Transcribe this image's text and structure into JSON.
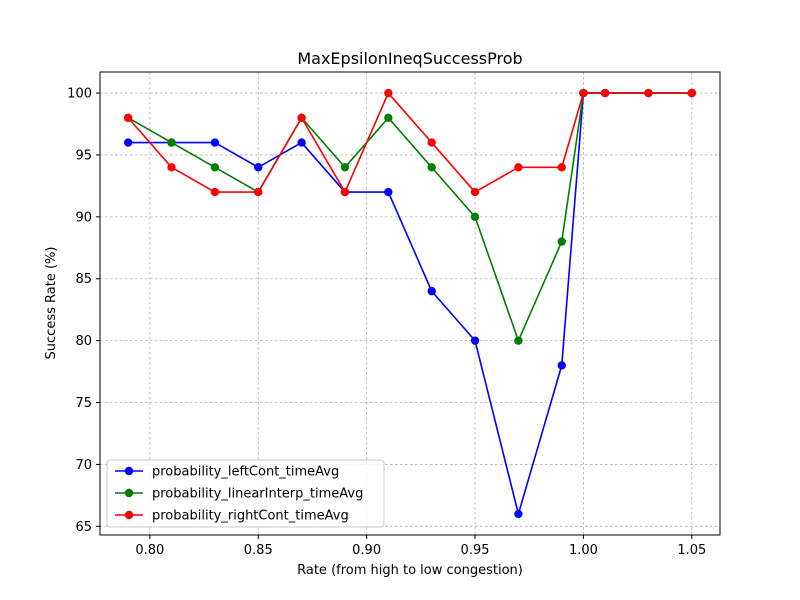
{
  "chart_data": {
    "type": "line",
    "title": "MaxEpsilonIneqSuccessProb",
    "xlabel": "Rate (from high to low congestion)",
    "ylabel": "Success Rate (%)",
    "xlim": [
      0.777,
      1.063
    ],
    "ylim": [
      64.3,
      101.7
    ],
    "xticks": [
      0.8,
      0.85,
      0.9,
      0.95,
      1.0,
      1.05
    ],
    "xtick_labels": [
      "0.80",
      "0.85",
      "0.90",
      "0.95",
      "1.00",
      "1.05"
    ],
    "yticks": [
      65,
      70,
      75,
      80,
      85,
      90,
      95,
      100
    ],
    "ytick_labels": [
      "65",
      "70",
      "75",
      "80",
      "85",
      "90",
      "95",
      "100"
    ],
    "grid": true,
    "legend_position": "lower-left",
    "x": [
      0.79,
      0.81,
      0.83,
      0.85,
      0.87,
      0.89,
      0.91,
      0.93,
      0.95,
      0.97,
      0.99,
      1.0,
      1.01,
      1.03,
      1.05
    ],
    "series": [
      {
        "name": "probability_leftCont_timeAvg",
        "color": "#0000ff",
        "values": [
          96,
          96,
          96,
          94,
          96,
          92,
          92,
          84,
          80,
          66,
          78,
          100,
          100,
          100,
          100
        ]
      },
      {
        "name": "probability_linearInterp_timeAvg",
        "color": "#008000",
        "values": [
          98,
          96,
          94,
          92,
          98,
          94,
          98,
          94,
          90,
          80,
          88,
          100,
          100,
          100,
          100
        ]
      },
      {
        "name": "probability_rightCont_timeAvg",
        "color": "#ff0000",
        "values": [
          98,
          94,
          92,
          92,
          98,
          92,
          100,
          96,
          92,
          94,
          94,
          100,
          100,
          100,
          100
        ]
      }
    ]
  }
}
